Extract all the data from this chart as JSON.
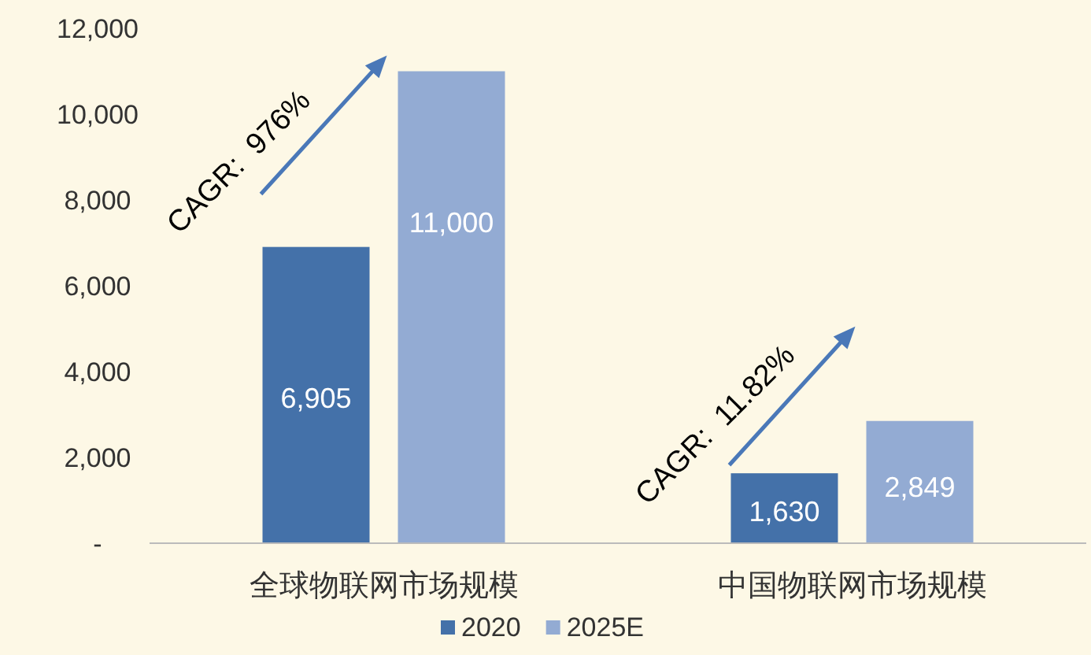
{
  "chart_data": {
    "type": "bar",
    "categories": [
      "全球物联网市场规模",
      "中国物联网市场规模"
    ],
    "series": [
      {
        "name": "2020",
        "color": "#4471a9",
        "values": [
          6905,
          1630
        ],
        "value_labels": [
          "6,905",
          "1,630"
        ]
      },
      {
        "name": "2025E",
        "color": "#93abd3",
        "values": [
          11000,
          2849
        ],
        "value_labels": [
          "11,000",
          "2,849"
        ]
      }
    ],
    "ylim": [
      0,
      12000
    ],
    "yticks": [
      {
        "value": 0,
        "label": "-"
      },
      {
        "value": 2000,
        "label": "2,000"
      },
      {
        "value": 4000,
        "label": "4,000"
      },
      {
        "value": 6000,
        "label": "6,000"
      },
      {
        "value": 8000,
        "label": "8,000"
      },
      {
        "value": 10000,
        "label": "10,000"
      },
      {
        "value": 12000,
        "label": "12,000"
      }
    ],
    "annotations": [
      "CAGR:  976%",
      "CAGR:  11.82%"
    ],
    "grid": false,
    "legend": "bottom"
  }
}
